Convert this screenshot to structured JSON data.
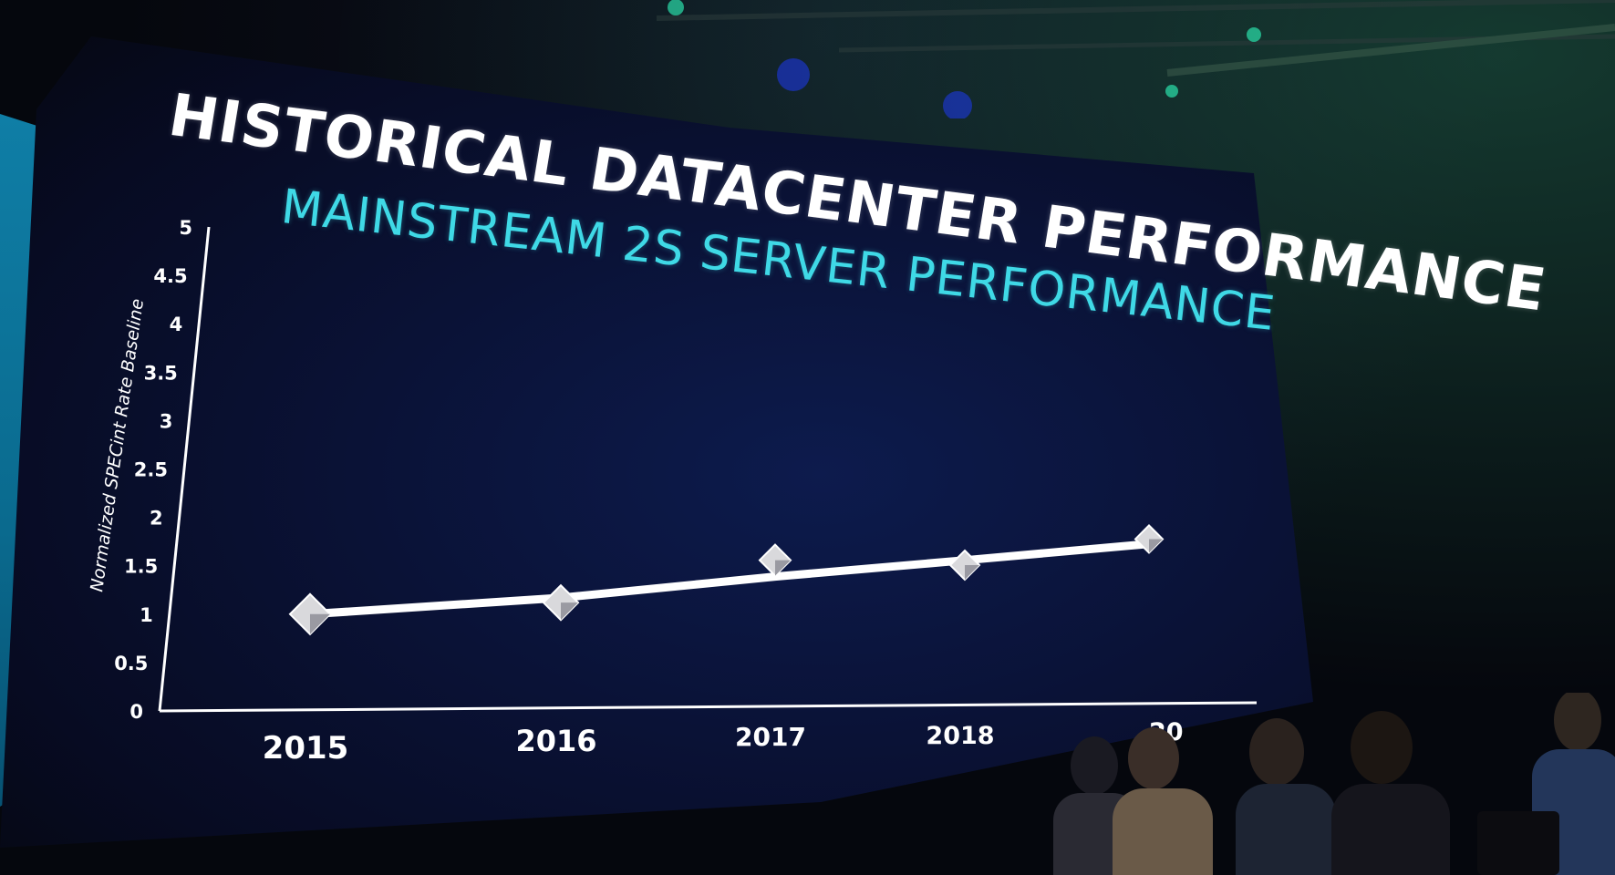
{
  "slide": {
    "title": "HISTORICAL DATACENTER PERFORMANCE",
    "subtitle": "MAINSTREAM 2S SERVER PERFORMANCE"
  },
  "colors": {
    "title": "#ffffff",
    "subtitle": "#3fd9e6",
    "screen_background": "#0a1236",
    "axis": "#ffffff",
    "series_line": "#ffffff"
  },
  "chart_data": {
    "type": "line",
    "title": "HISTORICAL DATACENTER PERFORMANCE",
    "subtitle": "MAINSTREAM 2S SERVER PERFORMANCE",
    "xlabel": "",
    "ylabel": "Normalized SPECint Rate Baseline",
    "categories": [
      "2015",
      "2016",
      "2017",
      "2018",
      "2019"
    ],
    "x_tick_labels": [
      "2015",
      "2016",
      "2017",
      "2018",
      "20"
    ],
    "y_ticks": [
      "0",
      "0.5",
      "1",
      "1.5",
      "2",
      "2.5",
      "3",
      "3.5",
      "4",
      "4.5",
      "5"
    ],
    "ylim": [
      0,
      5
    ],
    "grid": false,
    "legend": "none",
    "trend_line": [
      1.0,
      1.15,
      1.35,
      1.5,
      1.65
    ],
    "series": [
      {
        "values": [
          1.0,
          1.1,
          1.52,
          1.45,
          1.7
        ]
      }
    ]
  }
}
